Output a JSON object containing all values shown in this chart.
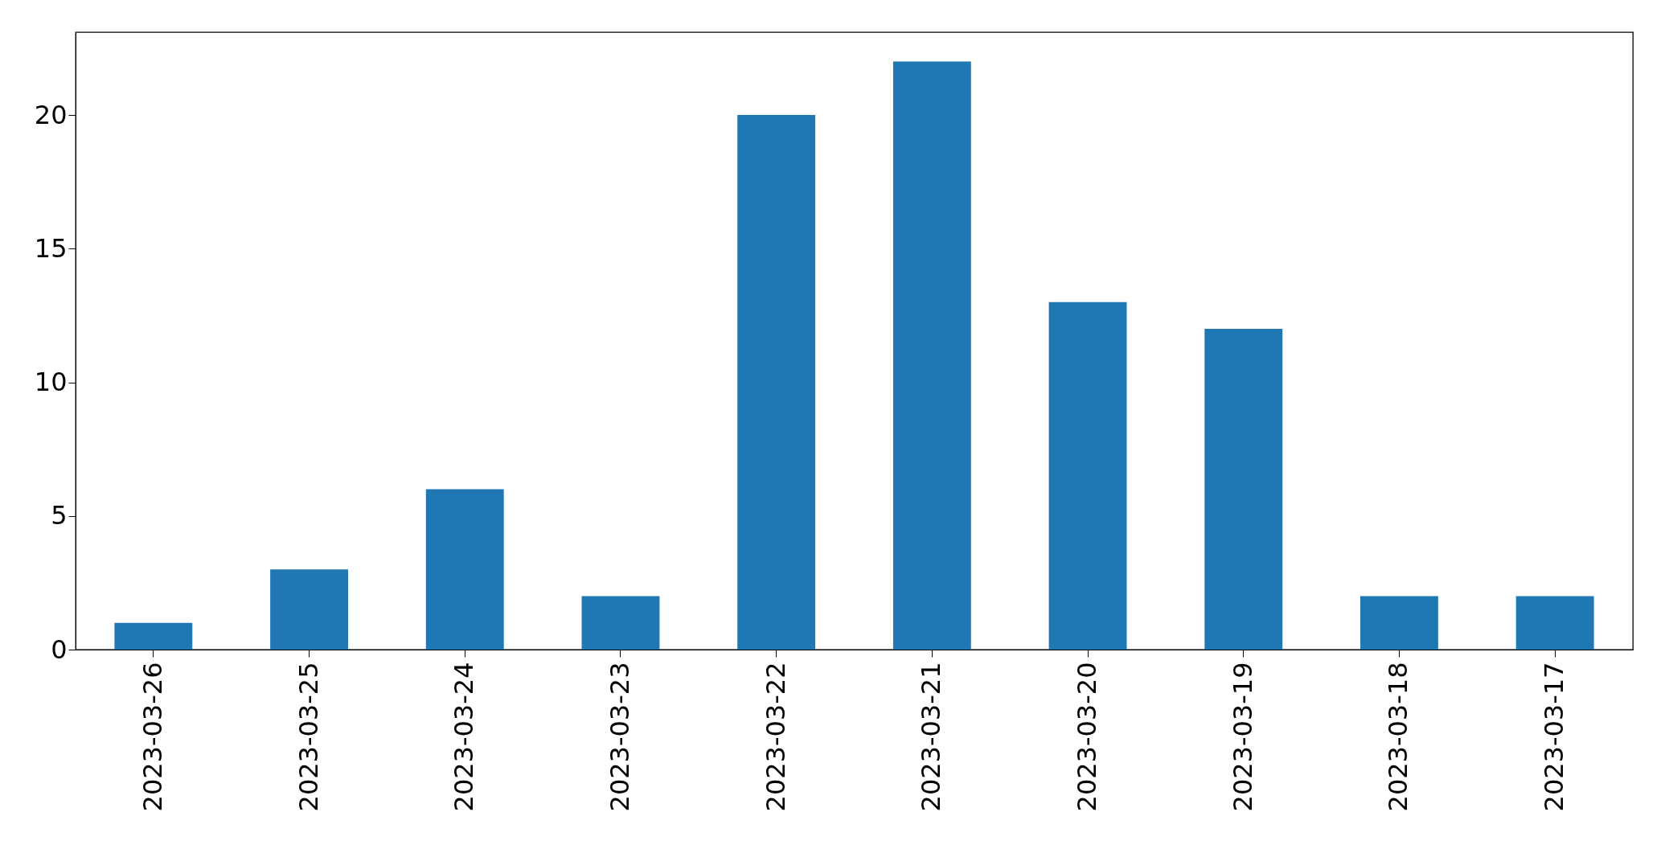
{
  "chart_data": {
    "type": "bar",
    "categories": [
      "2023-03-26",
      "2023-03-25",
      "2023-03-24",
      "2023-03-23",
      "2023-03-22",
      "2023-03-21",
      "2023-03-20",
      "2023-03-19",
      "2023-03-18",
      "2023-03-17"
    ],
    "values": [
      1,
      3,
      6,
      2,
      20,
      22,
      13,
      12,
      2,
      2
    ],
    "color": "#1f77b4",
    "ylim": [
      0,
      23.1
    ],
    "yticks": [
      0,
      5,
      10,
      15,
      20
    ],
    "grid": false
  }
}
